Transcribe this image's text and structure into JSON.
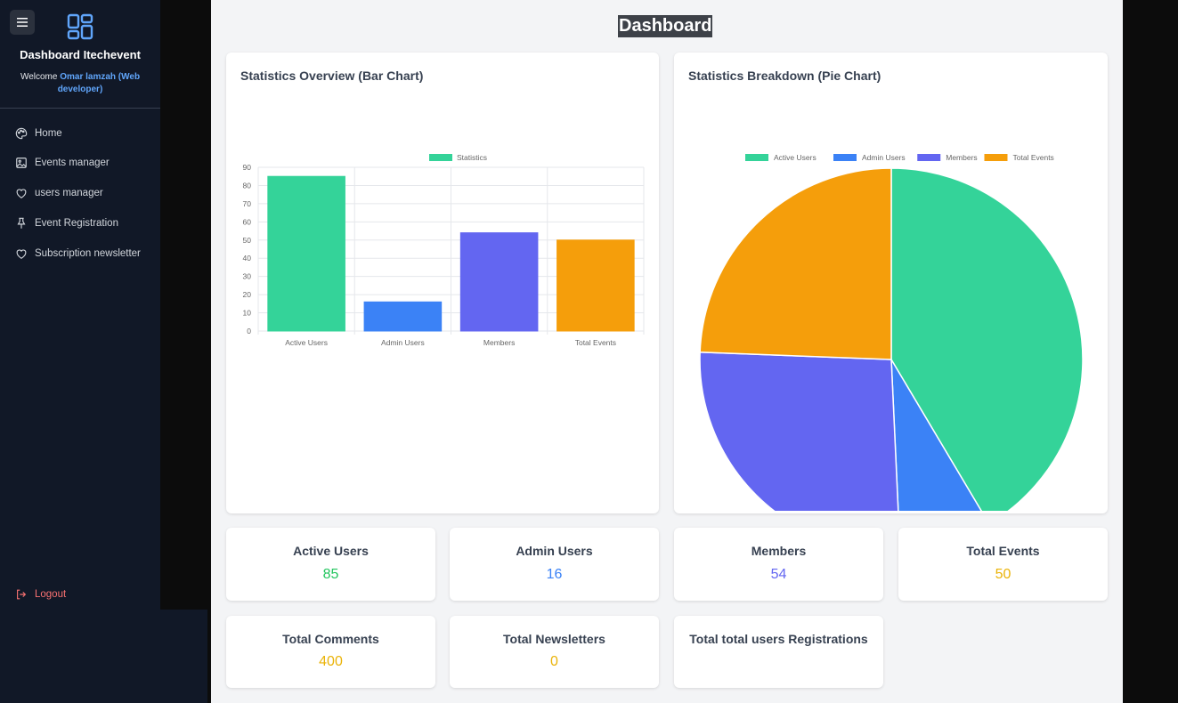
{
  "sidebar": {
    "brand": "Dashboard Itechevent",
    "welcome_prefix": "Welcome",
    "user": "Omar lamzah (Web developer)",
    "items": [
      {
        "label": "Home",
        "icon": "palette-icon"
      },
      {
        "label": "Events manager",
        "icon": "image-icon"
      },
      {
        "label": "users manager",
        "icon": "heart-icon"
      },
      {
        "label": "Event Registration",
        "icon": "pin-icon"
      },
      {
        "label": "Subscription newsletter",
        "icon": "heart-icon"
      }
    ],
    "logout": "Logout"
  },
  "page": {
    "title": "Dashboard"
  },
  "bar_card": {
    "title": "Statistics Overview (Bar Chart)"
  },
  "pie_card": {
    "title": "Statistics Breakdown (Pie Chart)"
  },
  "colors": {
    "active": "#34d399",
    "admin": "#3b82f6",
    "members": "#6366f1",
    "events": "#f59e0b",
    "comments": "#eab308",
    "active_text": "#22c55e"
  },
  "chart_data": [
    {
      "type": "bar",
      "title": "Statistics Overview (Bar Chart)",
      "categories": [
        "Active Users",
        "Admin Users",
        "Members",
        "Total Events"
      ],
      "series": [
        {
          "name": "Statistics",
          "values": [
            85,
            16,
            54,
            50
          ]
        }
      ],
      "ylim": [
        0,
        90
      ],
      "yticks": [
        0,
        10,
        20,
        30,
        40,
        50,
        60,
        70,
        80,
        90
      ],
      "colors": [
        "#34d399",
        "#3b82f6",
        "#6366f1",
        "#f59e0b"
      ],
      "grid": true,
      "legend": "top"
    },
    {
      "type": "pie",
      "title": "Statistics Breakdown (Pie Chart)",
      "categories": [
        "Active Users",
        "Admin Users",
        "Members",
        "Total Events"
      ],
      "values": [
        85,
        16,
        54,
        50
      ],
      "colors": [
        "#34d399",
        "#3b82f6",
        "#6366f1",
        "#f59e0b"
      ],
      "legend": "top"
    }
  ],
  "stats": [
    {
      "label": "Active Users",
      "value": "85"
    },
    {
      "label": "Admin Users",
      "value": "16"
    },
    {
      "label": "Members",
      "value": "54"
    },
    {
      "label": "Total Events",
      "value": "50"
    },
    {
      "label": "Total Comments",
      "value": "400"
    },
    {
      "label": "Total Newsletters",
      "value": "0"
    },
    {
      "label": "Total total users Registrations",
      "value": ""
    }
  ]
}
